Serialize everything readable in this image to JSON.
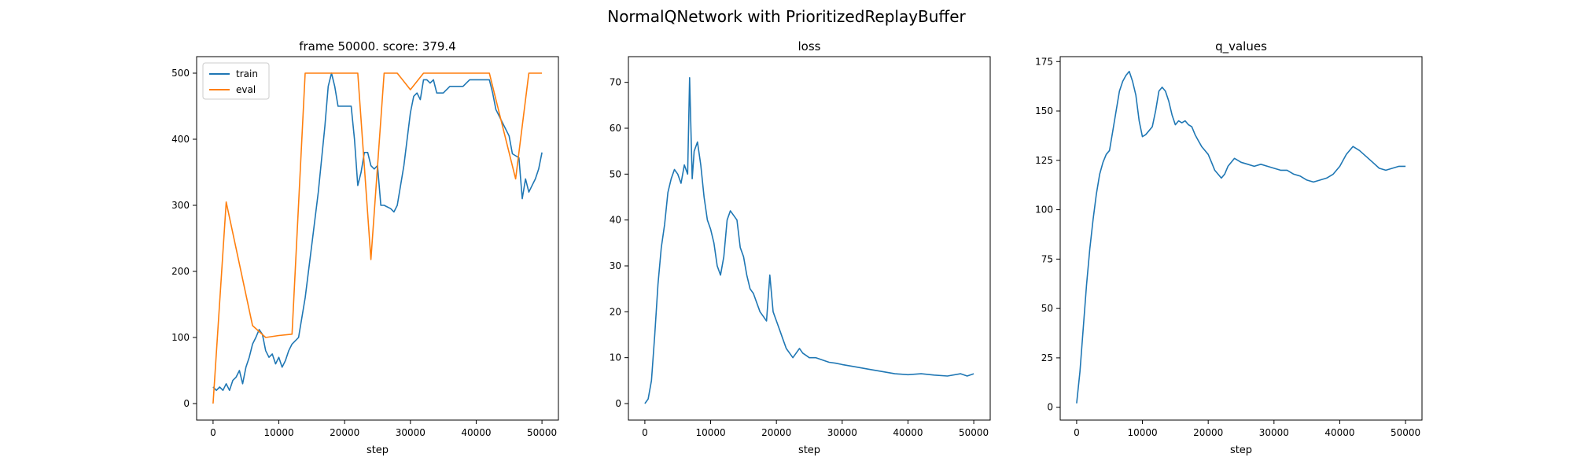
{
  "figure": {
    "suptitle": "NormalQNetwork with PrioritizedReplayBuffer"
  },
  "colors": {
    "train": "#1f77b4",
    "eval": "#ff7f0e",
    "axis": "#000000",
    "background": "#ffffff"
  },
  "chart_data": [
    {
      "type": "line",
      "title": "frame 50000. score: 379.4",
      "xlabel": "step",
      "ylabel": "",
      "xlim": [
        -2500,
        52500
      ],
      "ylim": [
        -25,
        525
      ],
      "xticks": [
        0,
        10000,
        20000,
        30000,
        40000,
        50000
      ],
      "yticks": [
        0,
        100,
        200,
        300,
        400,
        500
      ],
      "grid": false,
      "legend": {
        "placement": "upper-left",
        "entries": [
          "train",
          "eval"
        ]
      },
      "series": [
        {
          "name": "train",
          "color": "#1f77b4",
          "x": [
            0,
            500,
            1000,
            1500,
            2000,
            2500,
            3000,
            3500,
            4000,
            4500,
            5000,
            5500,
            6000,
            6500,
            7000,
            7500,
            8000,
            8500,
            9000,
            9500,
            10000,
            10500,
            11000,
            11500,
            12000,
            12500,
            13000,
            14000,
            15000,
            16000,
            17000,
            17500,
            18000,
            18500,
            19000,
            20000,
            21000,
            21500,
            22000,
            22500,
            23000,
            23500,
            24000,
            24500,
            25000,
            25500,
            26000,
            27000,
            27500,
            28000,
            29000,
            30000,
            30500,
            31000,
            31500,
            32000,
            32500,
            33000,
            33500,
            34000,
            34500,
            35000,
            36000,
            37000,
            38000,
            39000,
            40000,
            41000,
            42000,
            42500,
            43000,
            44000,
            45000,
            45500,
            46000,
            46500,
            47000,
            47500,
            48000,
            48500,
            49000,
            49500,
            50000
          ],
          "y": [
            25,
            20,
            25,
            20,
            30,
            20,
            35,
            40,
            50,
            30,
            55,
            70,
            90,
            100,
            112,
            105,
            80,
            70,
            75,
            60,
            70,
            55,
            65,
            80,
            90,
            95,
            100,
            160,
            240,
            320,
            420,
            480,
            500,
            480,
            450,
            450,
            450,
            400,
            330,
            350,
            380,
            380,
            360,
            355,
            360,
            300,
            300,
            295,
            290,
            300,
            360,
            440,
            465,
            470,
            460,
            490,
            490,
            485,
            490,
            470,
            470,
            470,
            480,
            480,
            480,
            490,
            490,
            490,
            490,
            470,
            445,
            425,
            405,
            378,
            375,
            372,
            310,
            340,
            320,
            330,
            340,
            355,
            380
          ]
        },
        {
          "name": "eval",
          "color": "#ff7f0e",
          "x": [
            0,
            2000,
            6000,
            8000,
            10000,
            12000,
            14000,
            18000,
            22000,
            24000,
            26000,
            28000,
            30000,
            32000,
            34000,
            36000,
            38000,
            40000,
            42000,
            44000,
            46000,
            48000,
            50000
          ],
          "y": [
            0,
            305,
            118,
            100,
            103,
            105,
            500,
            500,
            500,
            218,
            500,
            500,
            475,
            500,
            500,
            500,
            500,
            500,
            500,
            420,
            340,
            500,
            500
          ]
        }
      ]
    },
    {
      "type": "line",
      "title": "loss",
      "xlabel": "step",
      "ylabel": "",
      "xlim": [
        -2500,
        52500
      ],
      "ylim": [
        -3.6,
        75.6
      ],
      "xticks": [
        0,
        10000,
        20000,
        30000,
        40000,
        50000
      ],
      "yticks": [
        0,
        10,
        20,
        30,
        40,
        50,
        60,
        70
      ],
      "grid": false,
      "series": [
        {
          "name": "",
          "color": "#1f77b4",
          "x": [
            0,
            500,
            1000,
            1500,
            2000,
            2500,
            3000,
            3500,
            4000,
            4500,
            5000,
            5500,
            6000,
            6500,
            6800,
            7200,
            7500,
            8000,
            8500,
            9000,
            9500,
            10000,
            10500,
            11000,
            11500,
            12000,
            12500,
            13000,
            13500,
            14000,
            14500,
            15000,
            15500,
            16000,
            16500,
            17000,
            17500,
            18000,
            18500,
            19000,
            19500,
            20000,
            20500,
            21000,
            21500,
            22000,
            22500,
            23000,
            23500,
            24000,
            25000,
            26000,
            27000,
            28000,
            29000,
            30000,
            32000,
            34000,
            36000,
            38000,
            40000,
            42000,
            44000,
            46000,
            48000,
            49000,
            50000
          ],
          "y": [
            0,
            1,
            5,
            15,
            26,
            34,
            39,
            46,
            49,
            51,
            50,
            48,
            52,
            50,
            71,
            49,
            55,
            57,
            52,
            45,
            40,
            38,
            35,
            30,
            28,
            32,
            40,
            42,
            41,
            40,
            34,
            32,
            28,
            25,
            24,
            22,
            20,
            19,
            18,
            28,
            20,
            18,
            16,
            14,
            12,
            11,
            10,
            11,
            12,
            11,
            10,
            10,
            9.5,
            9,
            8.8,
            8.5,
            8,
            7.5,
            7,
            6.5,
            6.3,
            6.5,
            6.2,
            6,
            6.5,
            6,
            6.5
          ]
        }
      ]
    },
    {
      "type": "line",
      "title": "q_values",
      "xlabel": "step",
      "ylabel": "",
      "xlim": [
        -2500,
        52500
      ],
      "ylim": [
        -6.5,
        177.5
      ],
      "xticks": [
        0,
        10000,
        20000,
        30000,
        40000,
        50000
      ],
      "yticks": [
        0,
        25,
        50,
        75,
        100,
        125,
        150,
        175
      ],
      "grid": false,
      "series": [
        {
          "name": "",
          "color": "#1f77b4",
          "x": [
            0,
            500,
            1000,
            1500,
            2000,
            2500,
            3000,
            3500,
            4000,
            4500,
            5000,
            5500,
            6000,
            6500,
            7000,
            7500,
            8000,
            8500,
            9000,
            9500,
            10000,
            10500,
            11000,
            11500,
            12000,
            12500,
            13000,
            13500,
            14000,
            14500,
            15000,
            15500,
            16000,
            16500,
            17000,
            17500,
            18000,
            18500,
            19000,
            19500,
            20000,
            20500,
            21000,
            21500,
            22000,
            22500,
            23000,
            24000,
            25000,
            26000,
            27000,
            28000,
            29000,
            30000,
            31000,
            32000,
            33000,
            34000,
            35000,
            36000,
            37000,
            38000,
            39000,
            40000,
            41000,
            42000,
            43000,
            44000,
            45000,
            46000,
            47000,
            48000,
            49000,
            50000
          ],
          "y": [
            2,
            18,
            40,
            62,
            80,
            95,
            108,
            118,
            124,
            128,
            130,
            140,
            150,
            160,
            165,
            168,
            170,
            165,
            158,
            145,
            137,
            138,
            140,
            142,
            150,
            160,
            162,
            160,
            155,
            148,
            143,
            145,
            144,
            145,
            143,
            142,
            138,
            135,
            132,
            130,
            128,
            124,
            120,
            118,
            116,
            118,
            122,
            126,
            124,
            123,
            122,
            123,
            122,
            121,
            120,
            120,
            118,
            117,
            115,
            114,
            115,
            116,
            118,
            122,
            128,
            132,
            130,
            127,
            124,
            121,
            120,
            121,
            122,
            122
          ]
        }
      ]
    }
  ]
}
